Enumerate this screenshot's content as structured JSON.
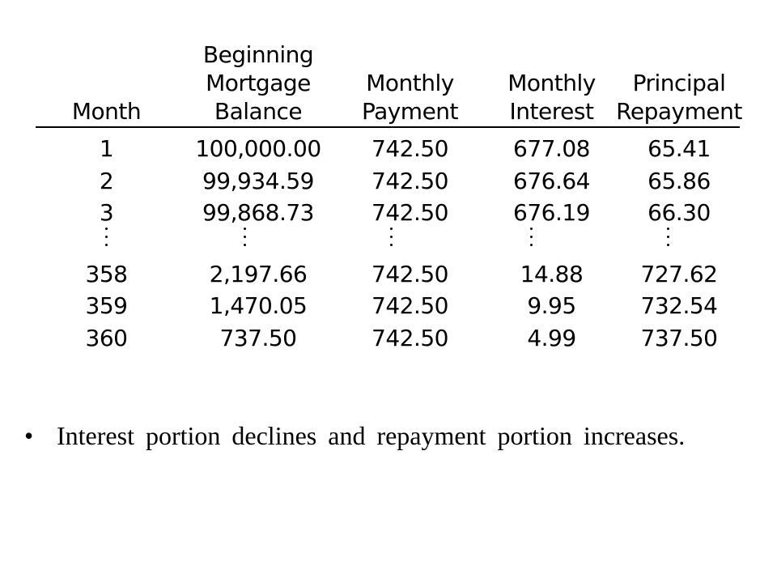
{
  "table": {
    "headers": [
      [
        "Month"
      ],
      [
        "Beginning",
        "Mortgage",
        "Balance"
      ],
      [
        "Monthly",
        "Payment"
      ],
      [
        "Monthly",
        "Interest"
      ],
      [
        "Principal",
        "Repayment"
      ]
    ],
    "rows_top": [
      [
        "1",
        "100,000.00",
        "742.50",
        "677.08",
        "65.41"
      ],
      [
        "2",
        "99,934.59",
        "742.50",
        "676.64",
        "65.86"
      ],
      [
        "3",
        "99,868.73",
        "742.50",
        "676.19",
        "66.30"
      ]
    ],
    "rows_bottom": [
      [
        "358",
        "2,197.66",
        "742.50",
        "14.88",
        "727.62"
      ],
      [
        "359",
        "1,470.05",
        "742.50",
        "9.95",
        "732.54"
      ],
      [
        "360",
        "737.50",
        "742.50",
        "4.99",
        "737.50"
      ]
    ]
  },
  "bullet": {
    "symbol": "•",
    "text": "Interest portion declines and repayment portion increases."
  }
}
